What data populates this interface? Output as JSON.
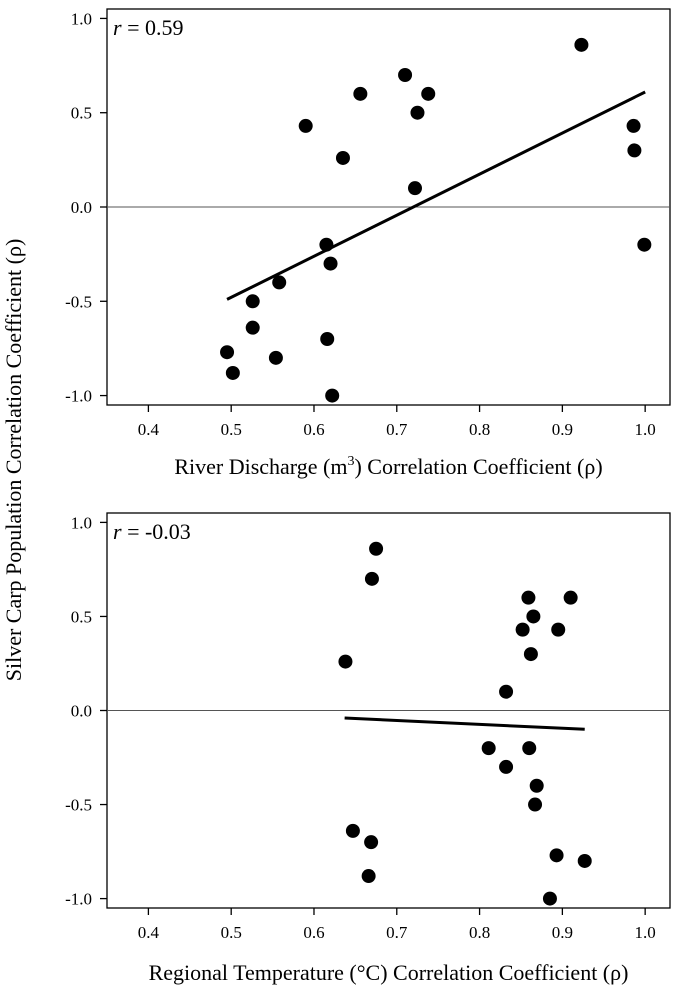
{
  "ylabel": "Silver Carp Population Correlation Coefficient (ρ)",
  "chart_data": [
    {
      "type": "scatter",
      "xlabel": {
        "pre": "River Discharge (m",
        "sup": "3",
        "post": ") Correlation Coefficient (ρ)"
      },
      "annotation": {
        "r_label": "r",
        "r_value": " = 0.59"
      },
      "xlim": [
        0.35,
        1.03
      ],
      "ylim": [
        -1.05,
        1.05
      ],
      "x_ticks": [
        "0.4",
        "0.5",
        "0.6",
        "0.7",
        "0.8",
        "0.9",
        "1.0"
      ],
      "y_ticks": [
        "1.0",
        "0.5",
        "0.0",
        "-0.5",
        "-1.0"
      ],
      "reference_line_y": 0,
      "fit_line": {
        "x": [
          0.495,
          1.0
        ],
        "y": [
          -0.49,
          0.61
        ]
      },
      "points": [
        {
          "x": 0.495,
          "y": -0.77
        },
        {
          "x": 0.502,
          "y": -0.88
        },
        {
          "x": 0.526,
          "y": -0.5
        },
        {
          "x": 0.526,
          "y": -0.64
        },
        {
          "x": 0.554,
          "y": -0.8
        },
        {
          "x": 0.558,
          "y": -0.4
        },
        {
          "x": 0.59,
          "y": 0.43
        },
        {
          "x": 0.615,
          "y": -0.2
        },
        {
          "x": 0.616,
          "y": -0.7
        },
        {
          "x": 0.62,
          "y": -0.3
        },
        {
          "x": 0.622,
          "y": -1.0
        },
        {
          "x": 0.635,
          "y": 0.26
        },
        {
          "x": 0.656,
          "y": 0.6
        },
        {
          "x": 0.71,
          "y": 0.7
        },
        {
          "x": 0.722,
          "y": 0.1
        },
        {
          "x": 0.725,
          "y": 0.5
        },
        {
          "x": 0.738,
          "y": 0.6
        },
        {
          "x": 0.923,
          "y": 0.86
        },
        {
          "x": 0.986,
          "y": 0.43
        },
        {
          "x": 0.987,
          "y": 0.3
        },
        {
          "x": 0.999,
          "y": -0.2
        }
      ]
    },
    {
      "type": "scatter",
      "xlabel": {
        "pre": "Regional Temperature (°C) Correlation Coefficient (ρ)",
        "sup": "",
        "post": ""
      },
      "annotation": {
        "r_label": "r",
        "r_value": " = -0.03"
      },
      "xlim": [
        0.35,
        1.03
      ],
      "ylim": [
        -1.05,
        1.05
      ],
      "x_ticks": [
        "0.4",
        "0.5",
        "0.6",
        "0.7",
        "0.8",
        "0.9",
        "1.0"
      ],
      "y_ticks": [
        "1.0",
        "0.5",
        "0.0",
        "-0.5",
        "-1.0"
      ],
      "reference_line_y": 0,
      "fit_line": {
        "x": [
          0.637,
          0.927
        ],
        "y": [
          -0.04,
          -0.1
        ]
      },
      "points": [
        {
          "x": 0.638,
          "y": 0.26
        },
        {
          "x": 0.647,
          "y": -0.64
        },
        {
          "x": 0.666,
          "y": -0.88
        },
        {
          "x": 0.669,
          "y": -0.7
        },
        {
          "x": 0.67,
          "y": 0.7
        },
        {
          "x": 0.675,
          "y": 0.86
        },
        {
          "x": 0.811,
          "y": -0.2
        },
        {
          "x": 0.832,
          "y": -0.3
        },
        {
          "x": 0.832,
          "y": 0.1
        },
        {
          "x": 0.852,
          "y": 0.43
        },
        {
          "x": 0.859,
          "y": 0.6
        },
        {
          "x": 0.86,
          "y": -0.2
        },
        {
          "x": 0.862,
          "y": 0.3
        },
        {
          "x": 0.865,
          "y": 0.5
        },
        {
          "x": 0.867,
          "y": -0.5
        },
        {
          "x": 0.869,
          "y": -0.4
        },
        {
          "x": 0.885,
          "y": -1.0
        },
        {
          "x": 0.893,
          "y": -0.77
        },
        {
          "x": 0.895,
          "y": 0.43
        },
        {
          "x": 0.91,
          "y": 0.6
        },
        {
          "x": 0.927,
          "y": -0.8
        }
      ]
    }
  ]
}
